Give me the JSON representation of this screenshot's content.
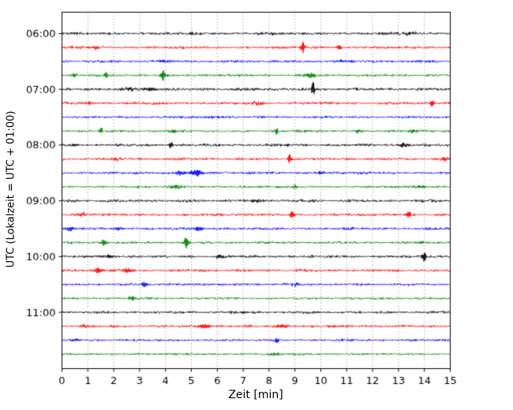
{
  "chart_data": {
    "type": "line",
    "subtype": "helicorder-seismogram-drumplot",
    "title": "",
    "xlabel": "Zeit  [min]",
    "ylabel": "UTC (Lokalzeit = UTC + 01:00)",
    "xlim": [
      0,
      15
    ],
    "x_ticks": [
      "0",
      "1",
      "2",
      "3",
      "4",
      "5",
      "6",
      "7",
      "8",
      "9",
      "10",
      "11",
      "12",
      "13",
      "14",
      "15"
    ],
    "grid": "vertical dotted gridlines at each minute",
    "legend": "none",
    "hour_labels": [
      "06:00",
      "07:00",
      "08:00",
      "09:00",
      "10:00",
      "11:00"
    ],
    "traces_per_hour": 4,
    "minutes_per_trace": 15,
    "trace_color_cycle": [
      "#000000",
      "#ff0000",
      "#0000ff",
      "#008000"
    ],
    "traces": [
      {
        "start": "06:00",
        "color": "#000000",
        "seed": 101,
        "amp": 1.7,
        "spikes": [
          [
            5.0,
            1.1,
            0.1
          ],
          [
            7.8,
            0.8,
            0.5
          ],
          [
            13.4,
            1.0,
            0.3
          ]
        ]
      },
      {
        "start": "06:15",
        "color": "#ff0000",
        "seed": 102,
        "amp": 1.6,
        "spikes": [
          [
            1.3,
            1.2,
            0.2
          ],
          [
            9.3,
            5.0,
            0.08
          ],
          [
            10.7,
            2.4,
            0.08
          ]
        ]
      },
      {
        "start": "06:30",
        "color": "#0000ff",
        "seed": 103,
        "amp": 1.6,
        "spikes": [
          [
            4.0,
            0.9,
            0.3
          ],
          [
            11.0,
            0.8,
            0.4
          ]
        ]
      },
      {
        "start": "06:45",
        "color": "#008000",
        "seed": 104,
        "amp": 1.6,
        "spikes": [
          [
            0.5,
            1.6,
            0.12
          ],
          [
            1.7,
            2.6,
            0.08
          ],
          [
            3.9,
            4.0,
            0.08
          ],
          [
            9.6,
            1.6,
            0.2
          ]
        ]
      },
      {
        "start": "07:00",
        "color": "#000000",
        "seed": 105,
        "amp": 1.8,
        "spikes": [
          [
            2.6,
            1.2,
            0.3
          ],
          [
            3.4,
            1.6,
            0.25
          ],
          [
            9.7,
            6.5,
            0.08
          ]
        ]
      },
      {
        "start": "07:15",
        "color": "#ff0000",
        "seed": 106,
        "amp": 1.7,
        "spikes": [
          [
            1.0,
            1.2,
            0.2
          ],
          [
            7.5,
            1.2,
            0.3
          ],
          [
            14.3,
            3.0,
            0.08
          ]
        ]
      },
      {
        "start": "07:30",
        "color": "#0000ff",
        "seed": 107,
        "amp": 1.5,
        "spikes": [
          [
            6.0,
            0.7,
            0.4
          ]
        ]
      },
      {
        "start": "07:45",
        "color": "#008000",
        "seed": 108,
        "amp": 1.5,
        "spikes": [
          [
            1.5,
            2.2,
            0.08
          ],
          [
            4.3,
            1.6,
            0.15
          ],
          [
            8.3,
            2.2,
            0.08
          ],
          [
            11.5,
            1.2,
            0.2
          ],
          [
            13.5,
            1.2,
            0.2
          ]
        ]
      },
      {
        "start": "08:00",
        "color": "#000000",
        "seed": 109,
        "amp": 1.7,
        "spikes": [
          [
            0.5,
            1.2,
            0.2
          ],
          [
            4.2,
            2.2,
            0.08
          ],
          [
            13.2,
            1.8,
            0.2
          ]
        ]
      },
      {
        "start": "08:15",
        "color": "#ff0000",
        "seed": 110,
        "amp": 1.6,
        "spikes": [
          [
            2.1,
            1.2,
            0.2
          ],
          [
            8.8,
            4.0,
            0.08
          ],
          [
            14.8,
            1.4,
            0.15
          ]
        ]
      },
      {
        "start": "08:30",
        "color": "#0000ff",
        "seed": 111,
        "amp": 1.6,
        "spikes": [
          [
            4.6,
            1.8,
            0.2
          ],
          [
            5.2,
            2.6,
            0.25
          ],
          [
            10.0,
            1.2,
            0.2
          ]
        ]
      },
      {
        "start": "08:45",
        "color": "#008000",
        "seed": 112,
        "amp": 1.5,
        "spikes": [
          [
            4.4,
            1.8,
            0.2
          ],
          [
            9.0,
            1.2,
            0.2
          ],
          [
            13.9,
            1.2,
            0.2
          ]
        ]
      },
      {
        "start": "09:00",
        "color": "#000000",
        "seed": 113,
        "amp": 1.7,
        "spikes": [
          [
            7.5,
            1.0,
            0.3
          ]
        ]
      },
      {
        "start": "09:15",
        "color": "#ff0000",
        "seed": 114,
        "amp": 1.6,
        "spikes": [
          [
            0.8,
            1.2,
            0.2
          ],
          [
            8.9,
            3.5,
            0.08
          ],
          [
            13.4,
            2.4,
            0.15
          ]
        ]
      },
      {
        "start": "09:30",
        "color": "#0000ff",
        "seed": 115,
        "amp": 1.6,
        "spikes": [
          [
            0.3,
            1.8,
            0.15
          ],
          [
            2.2,
            1.3,
            0.2
          ],
          [
            5.3,
            2.2,
            0.2
          ]
        ]
      },
      {
        "start": "09:45",
        "color": "#008000",
        "seed": 116,
        "amp": 1.5,
        "spikes": [
          [
            1.6,
            2.2,
            0.12
          ],
          [
            4.8,
            5.5,
            0.08
          ],
          [
            13.9,
            1.3,
            0.15
          ]
        ]
      },
      {
        "start": "10:00",
        "color": "#000000",
        "seed": 117,
        "amp": 1.7,
        "spikes": [
          [
            1.8,
            1.2,
            0.25
          ],
          [
            6.1,
            1.8,
            0.12
          ],
          [
            14.0,
            4.2,
            0.08
          ]
        ]
      },
      {
        "start": "10:15",
        "color": "#ff0000",
        "seed": 118,
        "amp": 1.6,
        "spikes": [
          [
            1.4,
            2.4,
            0.15
          ],
          [
            2.5,
            1.8,
            0.2
          ]
        ]
      },
      {
        "start": "10:30",
        "color": "#0000ff",
        "seed": 119,
        "amp": 1.5,
        "spikes": [
          [
            3.2,
            2.2,
            0.12
          ],
          [
            9.0,
            0.9,
            0.4
          ]
        ]
      },
      {
        "start": "10:45",
        "color": "#008000",
        "seed": 120,
        "amp": 1.4,
        "spikes": [
          [
            2.7,
            1.6,
            0.15
          ]
        ]
      },
      {
        "start": "11:00",
        "color": "#000000",
        "seed": 121,
        "amp": 1.6,
        "spikes": [
          [
            7.0,
            0.7,
            0.5
          ]
        ]
      },
      {
        "start": "11:15",
        "color": "#ff0000",
        "seed": 122,
        "amp": 1.6,
        "spikes": [
          [
            0.9,
            1.2,
            0.2
          ],
          [
            5.5,
            1.6,
            0.3
          ],
          [
            8.5,
            1.3,
            0.3
          ]
        ]
      },
      {
        "start": "11:30",
        "color": "#0000ff",
        "seed": 123,
        "amp": 1.5,
        "spikes": [
          [
            0.5,
            1.2,
            0.2
          ],
          [
            8.3,
            2.4,
            0.08
          ]
        ]
      },
      {
        "start": "11:45",
        "color": "#008000",
        "seed": 124,
        "amp": 1.4,
        "spikes": [
          [
            8.2,
            1.2,
            0.2
          ]
        ]
      }
    ]
  }
}
